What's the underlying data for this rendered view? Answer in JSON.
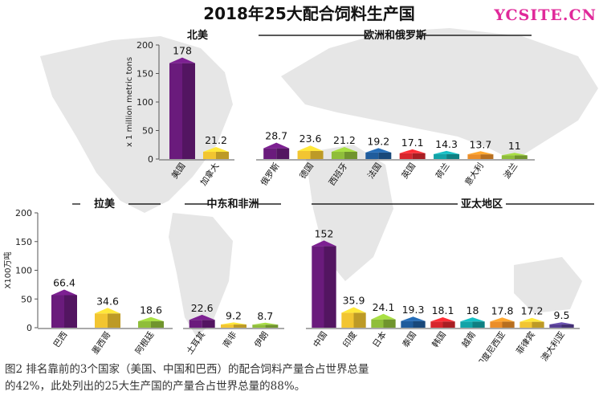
{
  "title": "2018年25大配合饲料生产国",
  "watermark": "YCSITE.CN",
  "caption": {
    "line1": "图2 排名靠前的3个国家（美国、中国和巴西）的配合饲料产量合占世界总量",
    "line2": "的42%，此处列出的25大生产国的产量合占世界总量的88%。"
  },
  "colors": {
    "purple": "#6a1b7c",
    "yellow": "#f2c531",
    "green": "#8fbe3a",
    "blue": "#1f5c9c",
    "red": "#d7262d",
    "teal": "#12a3a7",
    "orange": "#eb8e29",
    "violet": "#563e93"
  },
  "chart_data": [
    {
      "type": "bar",
      "title": "北美",
      "ylabel": "x 1 million metric tons",
      "ylim": [
        0,
        200
      ],
      "yticks": [
        0,
        50,
        100,
        150,
        200
      ],
      "categories": [
        "美国",
        "加拿大"
      ],
      "values": [
        178,
        21.2
      ],
      "labels": [
        "178",
        "21.2"
      ],
      "colors": [
        "purple",
        "yellow"
      ]
    },
    {
      "type": "bar",
      "title": "欧洲和俄罗斯",
      "ylim": [
        0,
        200
      ],
      "categories": [
        "俄罗斯",
        "德国",
        "西班牙",
        "法国",
        "英国",
        "荷兰",
        "意大利",
        "波兰"
      ],
      "values": [
        28.7,
        23.6,
        21.2,
        19.2,
        17.1,
        14.3,
        13.7,
        11
      ],
      "labels": [
        "28.7",
        "23.6",
        "21.2",
        "19.2",
        "17.1",
        "14.3",
        "13.7",
        "11"
      ],
      "colors": [
        "purple",
        "yellow",
        "green",
        "blue",
        "red",
        "teal",
        "orange",
        "green"
      ]
    },
    {
      "type": "bar",
      "title": "拉美",
      "ylabel": "X100万吨",
      "ylim": [
        0,
        200
      ],
      "yticks": [
        0,
        50,
        100,
        150,
        200
      ],
      "categories": [
        "巴西",
        "墨西哥",
        "阿根廷"
      ],
      "values": [
        66.4,
        34.6,
        18.6
      ],
      "labels": [
        "66.4",
        "34.6",
        "18.6"
      ],
      "colors": [
        "purple",
        "yellow",
        "green"
      ]
    },
    {
      "type": "bar",
      "title": "中东和非洲",
      "ylim": [
        0,
        200
      ],
      "categories": [
        "土耳其",
        "南非",
        "伊朗"
      ],
      "values": [
        22.6,
        9.2,
        8.7
      ],
      "labels": [
        "22.6",
        "9.2",
        "8.7"
      ],
      "colors": [
        "purple",
        "yellow",
        "green"
      ]
    },
    {
      "type": "bar",
      "title": "亚太地区",
      "ylim": [
        0,
        200
      ],
      "categories": [
        "中国",
        "印度",
        "日本",
        "泰国",
        "韩国",
        "越南",
        "印度尼西亚",
        "菲律宾",
        "澳大利亚"
      ],
      "values": [
        152,
        35.9,
        24.1,
        19.3,
        18.1,
        18,
        17.8,
        17.2,
        9.5
      ],
      "labels": [
        "152",
        "35.9",
        "24.1",
        "19.3",
        "18.1",
        "18",
        "17.8",
        "17.2",
        "9.5"
      ],
      "colors": [
        "purple",
        "yellow",
        "green",
        "blue",
        "red",
        "teal",
        "orange",
        "yellow",
        "violet"
      ]
    }
  ]
}
